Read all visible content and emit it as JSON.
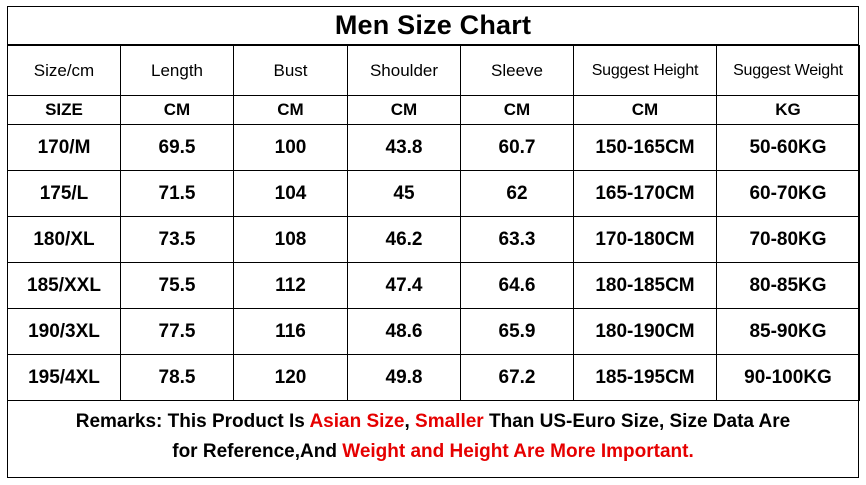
{
  "title": "Men Size Chart",
  "colors": {
    "highlight": "#e60000",
    "border": "#000000",
    "text": "#000000"
  },
  "table": {
    "headers": [
      "Size/cm",
      "Length",
      "Bust",
      "Shoulder",
      "Sleeve",
      "Suggest Height",
      "Suggest Weight"
    ],
    "units": [
      "SIZE",
      "CM",
      "CM",
      "CM",
      "CM",
      "CM",
      "KG"
    ],
    "rows": [
      [
        "170/M",
        "69.5",
        "100",
        "43.8",
        "60.7",
        "150-165CM",
        "50-60KG"
      ],
      [
        "175/L",
        "71.5",
        "104",
        "45",
        "62",
        "165-170CM",
        "60-70KG"
      ],
      [
        "180/XL",
        "73.5",
        "108",
        "46.2",
        "63.3",
        "170-180CM",
        "70-80KG"
      ],
      [
        "185/XXL",
        "75.5",
        "112",
        "47.4",
        "64.6",
        "180-185CM",
        "80-85KG"
      ],
      [
        "190/3XL",
        "77.5",
        "116",
        "48.6",
        "65.9",
        "180-190CM",
        "85-90KG"
      ],
      [
        "195/4XL",
        "78.5",
        "120",
        "49.8",
        "67.2",
        "185-195CM",
        "90-100KG"
      ]
    ]
  },
  "remarks": {
    "line1": [
      {
        "text": "Remarks: This Product Is ",
        "red": false
      },
      {
        "text": "Asian Size",
        "red": true
      },
      {
        "text": ", ",
        "red": false
      },
      {
        "text": "Smaller",
        "red": true
      },
      {
        "text": " Than US-Euro Size, Size Data Are",
        "red": false
      }
    ],
    "line2": [
      {
        "text": "for Reference,And ",
        "red": false
      },
      {
        "text": "Weight and Height Are More Important.",
        "red": true
      }
    ]
  }
}
